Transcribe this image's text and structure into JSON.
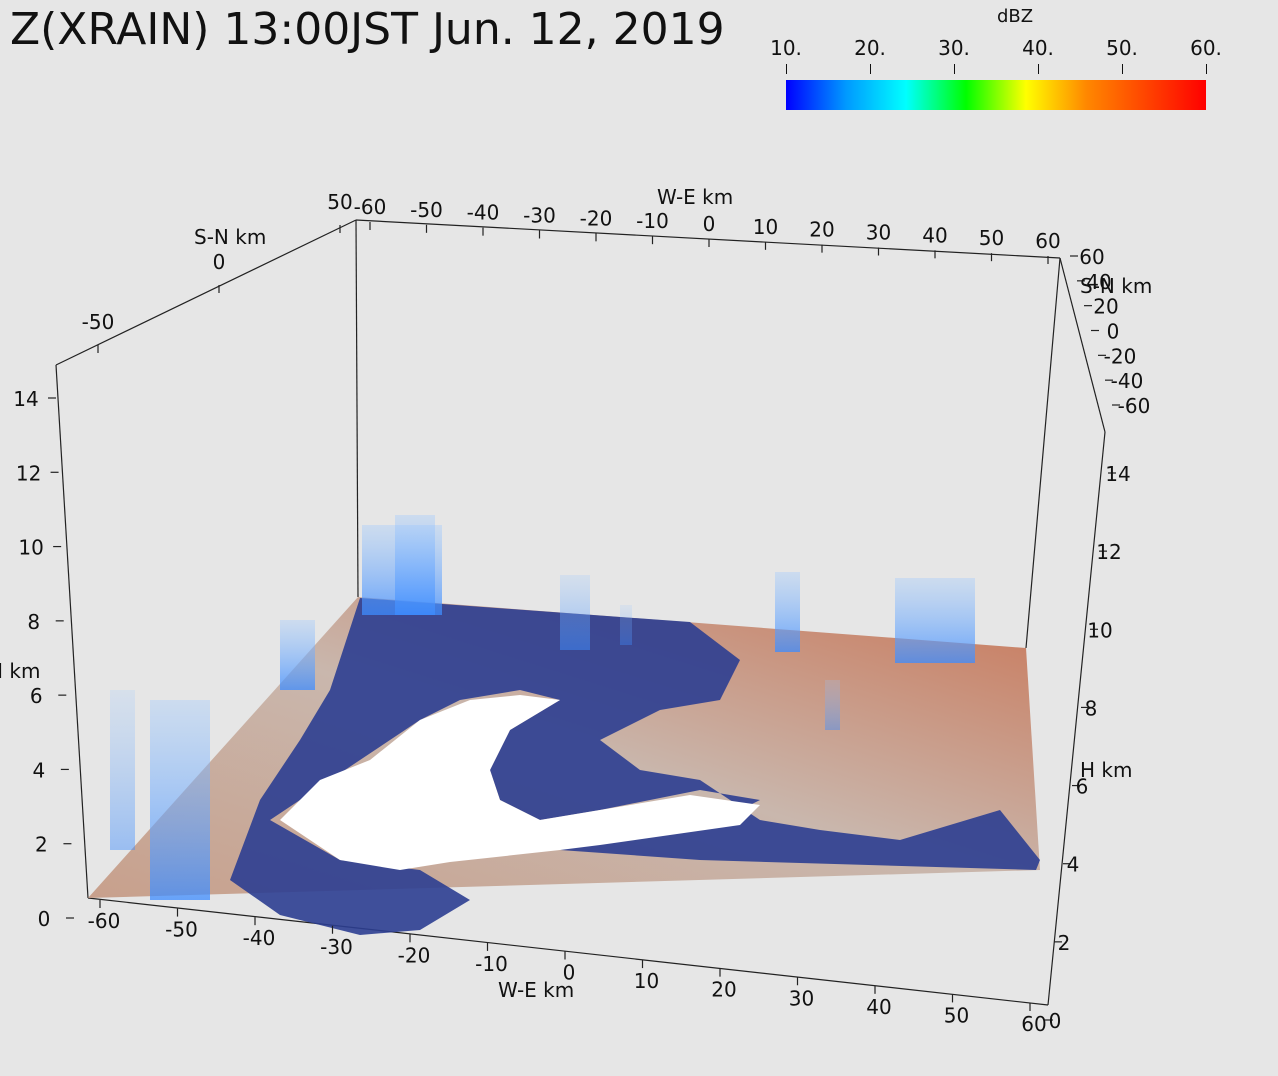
{
  "title": "Z(XRAIN) 13:00JST Jun. 12, 2019",
  "colorbar": {
    "label": "dBZ",
    "ticks": [
      "10.",
      "20.",
      "30.",
      "40.",
      "50.",
      "60."
    ],
    "range": [
      10,
      60
    ],
    "colors": [
      "#0000ff",
      "#0099ff",
      "#00ffff",
      "#00ff00",
      "#ffff00",
      "#ff8800",
      "#ff4400",
      "#ff0000"
    ]
  },
  "axes": {
    "we_label": "W-E km",
    "sn_label": "S-N km",
    "h_label": "H km",
    "we_ticks_bottom": [
      "-60",
      "-50",
      "-40",
      "-30",
      "-20",
      "-10",
      "0",
      "10",
      "20",
      "30",
      "40",
      "50",
      "60"
    ],
    "we_ticks_top": [
      "-60",
      "-50",
      "-40",
      "-30",
      "-20",
      "-10",
      "0",
      "10",
      "20",
      "30",
      "40",
      "50",
      "60"
    ],
    "sn_ticks_left": [
      "-50",
      "0",
      "50"
    ],
    "sn_ticks_right": [
      "60",
      "40",
      "20",
      "0",
      "-20",
      "-40",
      "-60"
    ],
    "h_ticks_left": [
      "0",
      "2",
      "4",
      "6",
      "8",
      "10",
      "12",
      "14"
    ],
    "h_ticks_right": [
      "0",
      "2",
      "4",
      "6",
      "8",
      "10",
      "12",
      "14"
    ]
  },
  "colors": {
    "background": "#e6e6e6",
    "terrain": "#c89a80",
    "sea_shallow": "#2a3d8f",
    "echo": "#5aa8ff"
  }
}
